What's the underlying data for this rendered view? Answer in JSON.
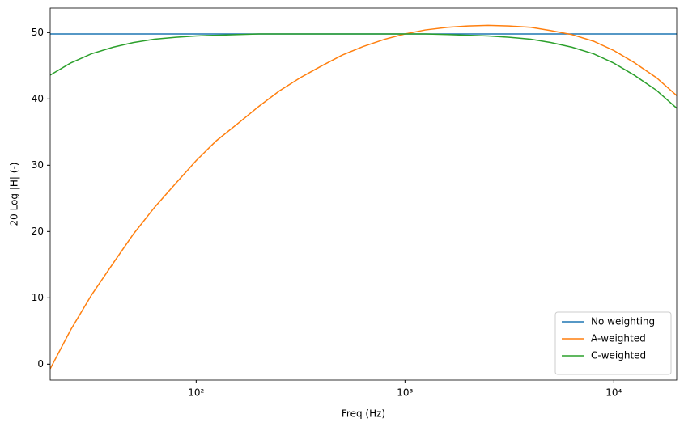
{
  "chart_data": {
    "type": "line",
    "xlabel": "Freq (Hz)",
    "ylabel": "20 Log |H| (-)",
    "x": [
      20,
      25,
      31.5,
      40,
      50,
      63,
      80,
      100,
      125,
      160,
      200,
      250,
      315,
      400,
      500,
      630,
      800,
      1000,
      1250,
      1600,
      2000,
      2500,
      3150,
      4000,
      5000,
      6300,
      8000,
      10000,
      12500,
      16000,
      20000
    ],
    "series": [
      {
        "name": "No weighting",
        "color": "#1f77b4",
        "values": [
          49.8,
          49.8,
          49.8,
          49.8,
          49.8,
          49.8,
          49.8,
          49.8,
          49.8,
          49.8,
          49.8,
          49.8,
          49.8,
          49.8,
          49.8,
          49.8,
          49.8,
          49.8,
          49.8,
          49.8,
          49.8,
          49.8,
          49.8,
          49.8,
          49.8,
          49.8,
          49.8,
          49.8,
          49.8,
          49.8,
          49.8
        ]
      },
      {
        "name": "A-weighted",
        "color": "#ff7f0e",
        "values": [
          -0.7,
          5.1,
          10.4,
          15.2,
          19.6,
          23.6,
          27.3,
          30.7,
          33.7,
          36.4,
          38.9,
          41.2,
          43.2,
          45.0,
          46.6,
          47.9,
          49.0,
          49.8,
          50.4,
          50.8,
          51.0,
          51.1,
          51.0,
          50.8,
          50.3,
          49.7,
          48.7,
          47.3,
          45.5,
          43.2,
          40.5
        ]
      },
      {
        "name": "C-weighted",
        "color": "#2ca02c",
        "values": [
          43.6,
          45.4,
          46.8,
          47.8,
          48.5,
          49.0,
          49.3,
          49.5,
          49.6,
          49.7,
          49.8,
          49.8,
          49.8,
          49.8,
          49.8,
          49.8,
          49.8,
          49.8,
          49.8,
          49.7,
          49.6,
          49.5,
          49.3,
          49.0,
          48.5,
          47.8,
          46.8,
          45.4,
          43.6,
          41.3,
          38.6
        ]
      }
    ],
    "xscale": "log",
    "xlim": [
      20,
      20000
    ],
    "xticks": [
      {
        "value": 100,
        "label": "10²"
      },
      {
        "value": 1000,
        "label": "10³"
      },
      {
        "value": 10000,
        "label": "10⁴"
      }
    ],
    "ylim": [
      -2.4,
      53.7
    ],
    "yticks": [
      0,
      10,
      20,
      30,
      40,
      50
    ],
    "legend": "lower right",
    "grid": false
  }
}
